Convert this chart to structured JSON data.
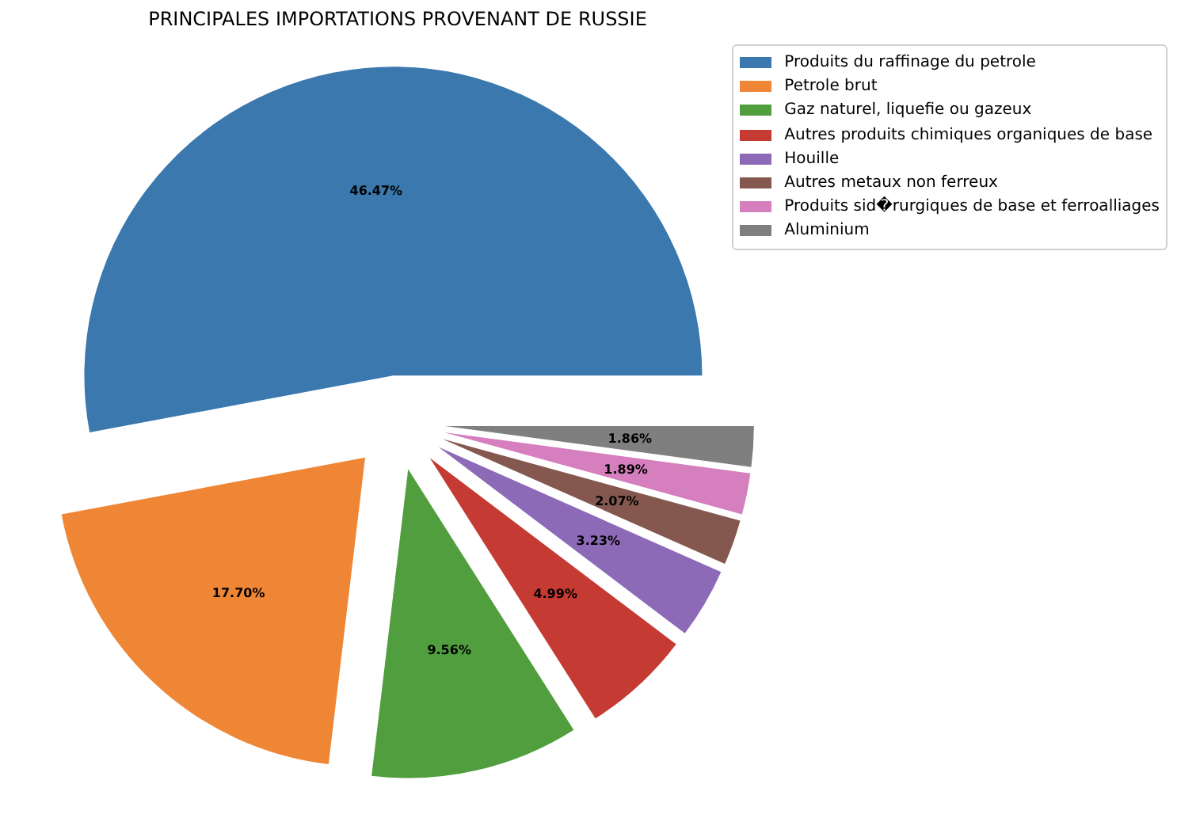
{
  "chart_data": {
    "type": "pie",
    "title": "PRINCIPALES IMPORTATIONS PROVENANT DE RUSSIE",
    "categories": [
      "Produits du raffinage du petrole",
      "Petrole brut",
      "Gaz naturel, liquefie ou gazeux",
      "Autres produits chimiques organiques de base",
      "Houille",
      "Autres metaux non ferreux",
      "Produits sid�rurgiques de base et ferroalliages",
      "Aluminium"
    ],
    "values": [
      46.47,
      17.7,
      9.56,
      4.99,
      3.23,
      2.07,
      1.89,
      1.86
    ],
    "colors": [
      "#3a78ae",
      "#ef8636",
      "#519e3e",
      "#c53a32",
      "#8d6ab8",
      "#84584e",
      "#d57fbe",
      "#7f7f7f"
    ],
    "value_labels": [
      "46.47%",
      "17.70%",
      "9.56%",
      "4.99%",
      "3.23%",
      "2.07%",
      "1.89%",
      "1.86%"
    ],
    "legend": "top right"
  }
}
